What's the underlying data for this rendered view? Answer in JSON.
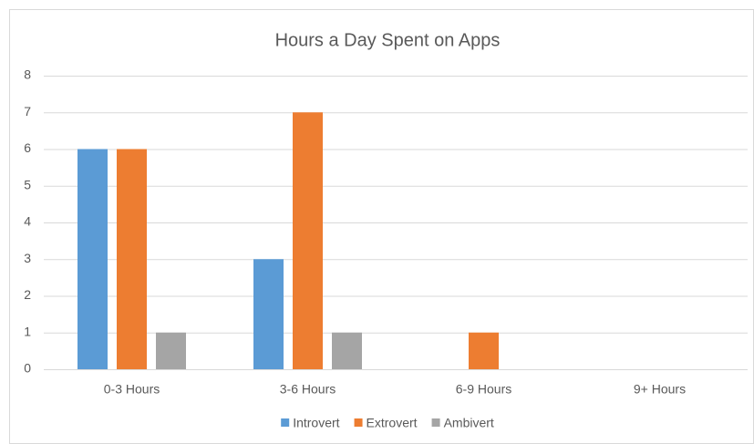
{
  "chart_data": {
    "type": "bar",
    "title": "Hours a Day Spent on Apps",
    "categories": [
      "0-3 Hours",
      "3-6 Hours",
      "6-9 Hours",
      "9+ Hours"
    ],
    "series": [
      {
        "name": "Introvert",
        "color": "#5b9bd5",
        "values": [
          6,
          3,
          0,
          0
        ]
      },
      {
        "name": "Extrovert",
        "color": "#ed7d31",
        "values": [
          6,
          7,
          1,
          0
        ]
      },
      {
        "name": "Ambivert",
        "color": "#a5a5a5",
        "values": [
          1,
          1,
          0,
          0
        ]
      }
    ],
    "ylim": [
      0,
      8
    ],
    "yticks": [
      0,
      1,
      2,
      3,
      4,
      5,
      6,
      7,
      8
    ],
    "grid": true,
    "legend": "bottom"
  }
}
